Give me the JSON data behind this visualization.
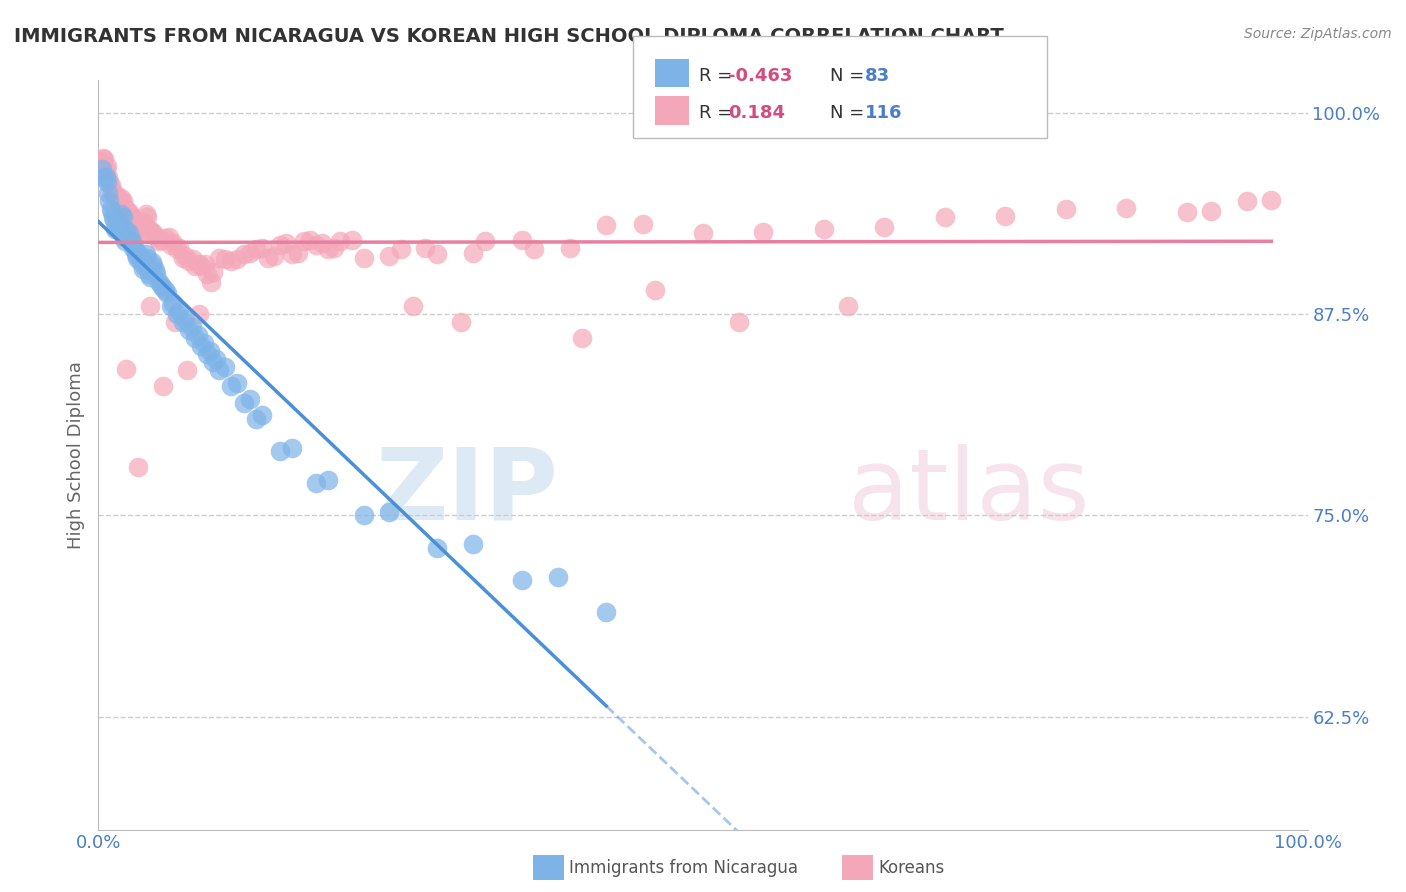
{
  "title": "IMMIGRANTS FROM NICARAGUA VS KOREAN HIGH SCHOOL DIPLOMA CORRELATION CHART",
  "source": "Source: ZipAtlas.com",
  "ylabel": "High School Diploma",
  "xlim": [
    0.0,
    1.0
  ],
  "ylim": [
    0.555,
    1.02
  ],
  "yticks": [
    0.625,
    0.75,
    0.875,
    1.0
  ],
  "ytick_labels": [
    "62.5%",
    "75.0%",
    "87.5%",
    "100.0%"
  ],
  "xticks": [
    0.0,
    1.0
  ],
  "xtick_labels": [
    "0.0%",
    "100.0%"
  ],
  "color_blue": "#7EB3E8",
  "color_pink": "#F4A7B9",
  "color_blue_line": "#4A90D9",
  "color_pink_line": "#E87FA0",
  "background_color": "#FFFFFF",
  "blue_x": [
    0.005,
    0.008,
    0.01,
    0.012,
    0.015,
    0.018,
    0.02,
    0.022,
    0.025,
    0.028,
    0.03,
    0.032,
    0.035,
    0.038,
    0.04,
    0.042,
    0.045,
    0.048,
    0.05,
    0.055,
    0.06,
    0.065,
    0.07,
    0.075,
    0.08,
    0.085,
    0.09,
    0.095,
    0.1,
    0.11,
    0.12,
    0.13,
    0.15,
    0.18,
    0.22,
    0.28,
    0.35,
    0.42,
    0.003,
    0.006,
    0.009,
    0.011,
    0.014,
    0.017,
    0.019,
    0.021,
    0.023,
    0.026,
    0.029,
    0.031,
    0.034,
    0.037,
    0.039,
    0.041,
    0.044,
    0.047,
    0.052,
    0.057,
    0.062,
    0.067,
    0.072,
    0.077,
    0.082,
    0.087,
    0.092,
    0.097,
    0.105,
    0.115,
    0.125,
    0.135,
    0.16,
    0.19,
    0.24,
    0.31,
    0.38,
    0.007,
    0.013,
    0.016,
    0.033,
    0.043,
    0.053
  ],
  "blue_y": [
    0.96,
    0.95,
    0.94,
    0.935,
    0.93,
    0.93,
    0.935,
    0.92,
    0.925,
    0.92,
    0.915,
    0.91,
    0.91,
    0.905,
    0.91,
    0.9,
    0.905,
    0.9,
    0.895,
    0.89,
    0.88,
    0.875,
    0.87,
    0.865,
    0.86,
    0.855,
    0.85,
    0.845,
    0.84,
    0.83,
    0.82,
    0.81,
    0.79,
    0.77,
    0.75,
    0.73,
    0.71,
    0.69,
    0.965,
    0.96,
    0.945,
    0.938,
    0.928,
    0.932,
    0.937,
    0.923,
    0.927,
    0.921,
    0.916,
    0.912,
    0.908,
    0.903,
    0.912,
    0.902,
    0.907,
    0.902,
    0.893,
    0.888,
    0.882,
    0.877,
    0.872,
    0.867,
    0.862,
    0.857,
    0.852,
    0.847,
    0.842,
    0.832,
    0.822,
    0.812,
    0.792,
    0.772,
    0.752,
    0.732,
    0.712,
    0.957,
    0.933,
    0.931,
    0.913,
    0.898,
    0.891
  ],
  "pink_x": [
    0.003,
    0.006,
    0.008,
    0.01,
    0.012,
    0.015,
    0.018,
    0.02,
    0.022,
    0.025,
    0.028,
    0.03,
    0.032,
    0.035,
    0.038,
    0.04,
    0.042,
    0.045,
    0.05,
    0.055,
    0.06,
    0.065,
    0.07,
    0.075,
    0.08,
    0.085,
    0.09,
    0.1,
    0.11,
    0.12,
    0.13,
    0.14,
    0.15,
    0.16,
    0.17,
    0.18,
    0.19,
    0.2,
    0.22,
    0.25,
    0.28,
    0.32,
    0.36,
    0.42,
    0.5,
    0.6,
    0.7,
    0.8,
    0.9,
    0.95,
    0.004,
    0.007,
    0.009,
    0.011,
    0.014,
    0.017,
    0.019,
    0.021,
    0.024,
    0.027,
    0.029,
    0.031,
    0.034,
    0.037,
    0.039,
    0.044,
    0.048,
    0.052,
    0.058,
    0.062,
    0.067,
    0.072,
    0.078,
    0.083,
    0.088,
    0.095,
    0.105,
    0.115,
    0.125,
    0.135,
    0.145,
    0.155,
    0.165,
    0.175,
    0.185,
    0.195,
    0.21,
    0.24,
    0.27,
    0.31,
    0.35,
    0.39,
    0.45,
    0.55,
    0.65,
    0.75,
    0.85,
    0.92,
    0.97,
    0.005,
    0.013,
    0.016,
    0.023,
    0.033,
    0.043,
    0.053,
    0.063,
    0.073,
    0.083,
    0.093,
    0.26,
    0.3,
    0.4,
    0.46,
    0.53,
    0.62
  ],
  "pink_y": [
    0.97,
    0.965,
    0.96,
    0.955,
    0.95,
    0.948,
    0.945,
    0.945,
    0.94,
    0.938,
    0.935,
    0.93,
    0.928,
    0.925,
    0.93,
    0.935,
    0.928,
    0.925,
    0.92,
    0.922,
    0.918,
    0.915,
    0.91,
    0.908,
    0.905,
    0.905,
    0.9,
    0.91,
    0.908,
    0.912,
    0.915,
    0.91,
    0.918,
    0.912,
    0.92,
    0.918,
    0.915,
    0.92,
    0.91,
    0.915,
    0.912,
    0.92,
    0.915,
    0.93,
    0.925,
    0.928,
    0.935,
    0.94,
    0.938,
    0.945,
    0.972,
    0.967,
    0.957,
    0.952,
    0.949,
    0.946,
    0.947,
    0.942,
    0.939,
    0.936,
    0.932,
    0.929,
    0.926,
    0.932,
    0.937,
    0.926,
    0.923,
    0.921,
    0.923,
    0.919,
    0.916,
    0.911,
    0.909,
    0.906,
    0.906,
    0.901,
    0.909,
    0.909,
    0.913,
    0.916,
    0.911,
    0.919,
    0.913,
    0.921,
    0.919,
    0.916,
    0.921,
    0.911,
    0.916,
    0.913,
    0.921,
    0.916,
    0.931,
    0.926,
    0.929,
    0.936,
    0.941,
    0.939,
    0.946,
    0.971,
    0.948,
    0.943,
    0.841,
    0.78,
    0.88,
    0.83,
    0.87,
    0.84,
    0.875,
    0.895,
    0.88,
    0.87,
    0.86,
    0.89,
    0.87,
    0.88
  ]
}
